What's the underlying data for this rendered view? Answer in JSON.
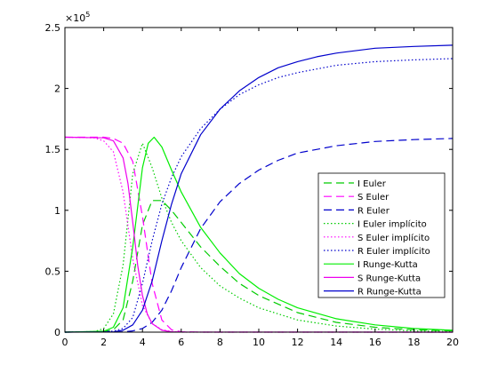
{
  "chart_data": {
    "type": "line",
    "title": "",
    "xlabel": "",
    "ylabel": "",
    "y_exponent": "×10",
    "y_exponent_power": "5",
    "xlim": [
      0,
      20
    ],
    "ylim": [
      0,
      250000
    ],
    "xticks": [
      0,
      2,
      4,
      6,
      8,
      10,
      12,
      14,
      16,
      18,
      20
    ],
    "xtick_labels": [
      "0",
      "2",
      "4",
      "6",
      "8",
      "10",
      "12",
      "14",
      "16",
      "18",
      "20"
    ],
    "yticks": [
      0,
      50000,
      100000,
      150000,
      200000,
      250000
    ],
    "ytick_labels": [
      "0",
      "0.5",
      "1",
      "1.5",
      "2",
      "2.5"
    ],
    "grid": false,
    "legend_position": "right",
    "series": [
      {
        "name": "I Euler",
        "color": "#00cc00",
        "dash": "dashed",
        "x": [
          0,
          2,
          2.5,
          3,
          3.5,
          4,
          4.5,
          5,
          5.5,
          6,
          7,
          8,
          9,
          10,
          12,
          14,
          16,
          18,
          20
        ],
        "y": [
          0,
          500,
          2000,
          10000,
          42000,
          88000,
          108000,
          108000,
          100000,
          90000,
          70000,
          54000,
          40000,
          30000,
          16000,
          8000,
          4000,
          2000,
          1000
        ]
      },
      {
        "name": "S Euler",
        "color": "#ff00ff",
        "dash": "dashed",
        "x": [
          0,
          2,
          2.5,
          3,
          3.5,
          4,
          4.5,
          5,
          5.5,
          6,
          7,
          8,
          20
        ],
        "y": [
          160000,
          160000,
          159000,
          155000,
          140000,
          95000,
          40000,
          10000,
          2000,
          300,
          0,
          0,
          0
        ]
      },
      {
        "name": "R Euler",
        "color": "#0000cc",
        "dash": "dashed",
        "x": [
          0,
          3,
          3.5,
          4,
          4.5,
          5,
          5.5,
          6,
          7,
          8,
          9,
          10,
          11,
          12,
          14,
          16,
          18,
          20
        ],
        "y": [
          0,
          200,
          1000,
          3000,
          8000,
          18000,
          34000,
          53000,
          85000,
          107000,
          122000,
          133000,
          141000,
          147000,
          153000,
          156500,
          158000,
          159000
        ]
      },
      {
        "name": "I Euler implícito",
        "color": "#00cc00",
        "dash": "dotted",
        "x": [
          0,
          1.5,
          2,
          2.5,
          3,
          3.5,
          4,
          4.5,
          5,
          5.5,
          6,
          7,
          8,
          9,
          10,
          12,
          14,
          16,
          18,
          20
        ],
        "y": [
          0,
          200,
          3000,
          15000,
          55000,
          130000,
          155000,
          135000,
          110000,
          90000,
          75000,
          53000,
          38000,
          28000,
          20000,
          10000,
          5000,
          2500,
          1000,
          500
        ]
      },
      {
        "name": "S Euler implícito",
        "color": "#ff00ff",
        "dash": "dotted",
        "x": [
          0,
          1.5,
          2,
          2.5,
          3,
          3.5,
          4,
          4.5,
          5,
          5.5,
          6,
          20
        ],
        "y": [
          160000,
          159500,
          157000,
          148000,
          115000,
          60000,
          22000,
          7000,
          2000,
          500,
          0,
          0
        ]
      },
      {
        "name": "R Euler implícito",
        "color": "#0000cc",
        "dash": "dotted",
        "x": [
          0,
          2.5,
          3,
          3.5,
          4,
          4.5,
          5,
          5.5,
          6,
          7,
          8,
          9,
          10,
          11,
          12,
          14,
          16,
          18,
          20
        ],
        "y": [
          0,
          800,
          3000,
          12000,
          40000,
          75000,
          105000,
          127000,
          144000,
          167000,
          183000,
          195000,
          203000,
          209000,
          213000,
          219000,
          222000,
          223500,
          224500
        ]
      },
      {
        "name": "I Runge-Kutta",
        "color": "#00ee00",
        "dash": "solid",
        "x": [
          0,
          2,
          2.5,
          3,
          3.5,
          4,
          4.3,
          4.6,
          5,
          5.5,
          6,
          7,
          8,
          9,
          10,
          11,
          12,
          14,
          16,
          18,
          20
        ],
        "y": [
          0,
          700,
          4000,
          20000,
          70000,
          135000,
          155000,
          160000,
          152000,
          133000,
          115000,
          86000,
          65000,
          48000,
          36000,
          27000,
          20000,
          11000,
          6000,
          3000,
          1500
        ]
      },
      {
        "name": "S Runge-Kutta",
        "color": "#ee00ee",
        "dash": "solid",
        "x": [
          0,
          2,
          2.5,
          3,
          3.25,
          3.5,
          3.75,
          4,
          4.25,
          4.5,
          5,
          5.5,
          6,
          20
        ],
        "y": [
          160000,
          159500,
          157000,
          143000,
          122000,
          90000,
          55000,
          30000,
          15000,
          7000,
          1500,
          300,
          50,
          0
        ]
      },
      {
        "name": "R Runge-Kutta",
        "color": "#0000cc",
        "dash": "solid",
        "x": [
          0,
          2.5,
          3,
          3.5,
          4,
          4.5,
          5,
          5.5,
          6,
          7,
          8,
          9,
          10,
          11,
          12,
          13,
          14,
          16,
          18,
          20
        ],
        "y": [
          0,
          200,
          1500,
          6000,
          18000,
          42000,
          75000,
          105000,
          130000,
          162000,
          183000,
          198000,
          209000,
          217000,
          222000,
          226000,
          229000,
          233000,
          234500,
          235500
        ]
      }
    ]
  }
}
